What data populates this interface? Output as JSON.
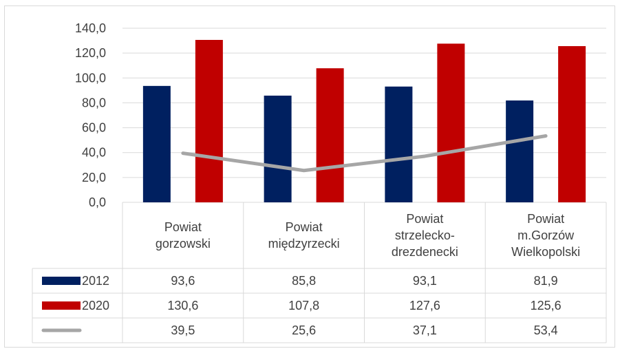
{
  "chart_data": {
    "type": "bar",
    "categories": [
      [
        "Powiat",
        "gorzowski"
      ],
      [
        "Powiat",
        "międzyrzecki"
      ],
      [
        "Powiat",
        "strzelecko-",
        "drezdenecki"
      ],
      [
        "Powiat",
        "m.Gorzów",
        "Wielkopolski"
      ]
    ],
    "series": [
      {
        "name": "2012",
        "kind": "bar",
        "color": "#002060",
        "values": [
          "93,6",
          "85,8",
          "93,1",
          "81,9"
        ]
      },
      {
        "name": "2020",
        "kind": "bar",
        "color": "#C00000",
        "values": [
          "130,6",
          "107,8",
          "127,6",
          "125,6"
        ]
      },
      {
        "name": "",
        "kind": "line",
        "color": "#A6A6A6",
        "values": [
          "39,5",
          "25,6",
          "37,1",
          "53,4"
        ]
      }
    ],
    "y_ticks": [
      "0,0",
      "20,0",
      "40,0",
      "60,0",
      "80,0",
      "100,0",
      "120,0",
      "140,0"
    ],
    "ylim": [
      0,
      140
    ],
    "grid": true,
    "legend": "data-table"
  }
}
